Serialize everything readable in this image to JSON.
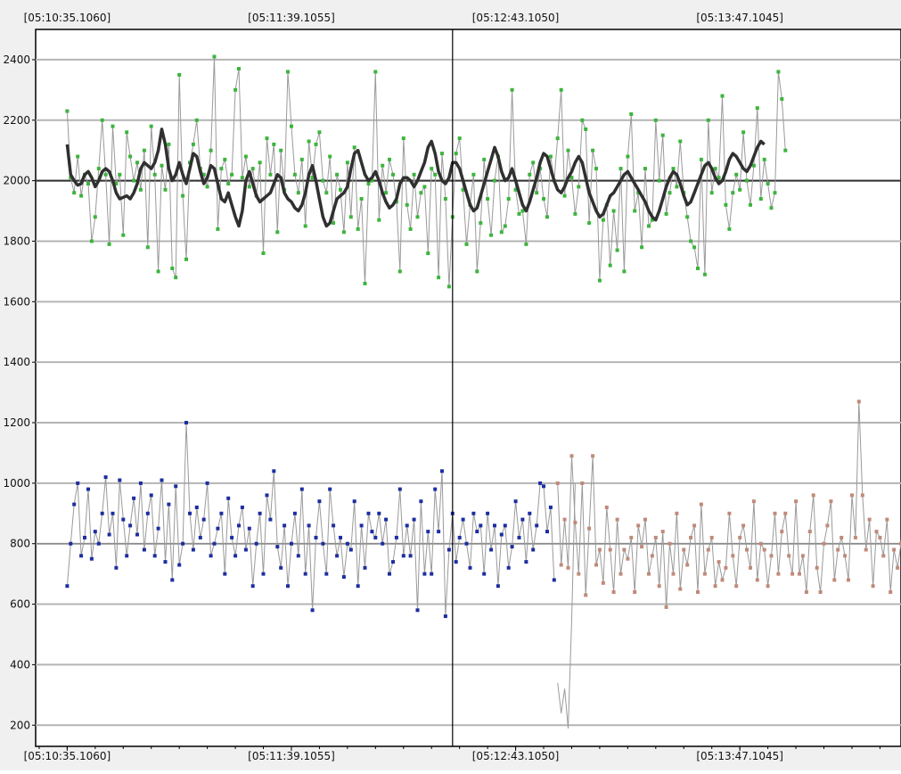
{
  "chart_data": {
    "type": "line",
    "title": "",
    "xlabel": "",
    "ylabel": "",
    "x_tick_labels": [
      "[05:10:35.1060]",
      "[05:11:39.1055]",
      "[05:12:43.1050]",
      "[05:13:47.1045]"
    ],
    "x_tick_seconds": [
      0,
      64,
      128,
      192
    ],
    "xlim_seconds": [
      -9,
      238
    ],
    "ylim": [
      130,
      2500
    ],
    "y_ticks": [
      200,
      400,
      600,
      800,
      1000,
      1200,
      1400,
      1600,
      1800,
      2000,
      2200,
      2400
    ],
    "reference_lines": [
      2000,
      800
    ],
    "cursor_seconds": 110,
    "grid": true,
    "legend": "none",
    "colors": {
      "upper_points": "#3cb43c",
      "upper_average": "#303030",
      "lower_points_before": "#1c2ea0",
      "lower_points_after": "#c08a78",
      "connector": "#9a9a9a"
    },
    "series": [
      {
        "name": "",
        "kind": "scatter-line",
        "x_start_seconds": 0,
        "x_step_seconds": 1,
        "values": [
          2230,
          2010,
          1960,
          2080,
          1950,
          2020,
          1990,
          1800,
          1880,
          2040,
          2200,
          2020,
          1790,
          2180,
          1990,
          2020,
          1820,
          2160,
          2080,
          2000,
          2060,
          1970,
          2100,
          1780,
          2180,
          2020,
          1700,
          2050,
          1970,
          2120,
          1710,
          1680,
          2350,
          1950,
          1740,
          2060,
          2120,
          2200,
          2040,
          2020,
          1980,
          2100,
          2410,
          1840,
          2040,
          2070,
          1990,
          2020,
          2300,
          2370,
          2010,
          2080,
          1980,
          2040,
          1950,
          2060,
          1760,
          2140,
          2020,
          2120,
          1830,
          2100,
          1970,
          2360,
          2180,
          2020,
          1960,
          2070,
          1850,
          2130,
          2010,
          2120,
          2160,
          2000,
          1960,
          2080,
          1860,
          2020,
          1970,
          1830,
          2060,
          1880,
          2110,
          1840,
          1940,
          1660,
          1990,
          2000,
          2360,
          1870,
          2050,
          1960,
          2070,
          2020,
          1930,
          1700,
          2140,
          1920,
          1840,
          2020,
          1880,
          1960,
          1980,
          1760,
          2040,
          2020,
          1680,
          2090,
          1940,
          1650,
          1880,
          2090,
          2140,
          1970,
          1790,
          1920,
          2020,
          1700,
          1860,
          2070,
          1940,
          1820,
          2000,
          2080,
          1830,
          1850,
          1940,
          2300,
          1970,
          1890,
          1900,
          1790,
          2020,
          2060,
          1960,
          2040,
          1940,
          1880,
          2080,
          2000,
          2140,
          2300,
          1950,
          2100,
          2010,
          1890,
          1980,
          2200,
          2170,
          1860,
          2100,
          2040,
          1670,
          1870,
          1920,
          1720,
          1900,
          1770,
          2040,
          1700,
          2080,
          2220,
          1900,
          1960,
          1780,
          2040,
          1850,
          1870,
          2200,
          2000,
          2150,
          1890,
          1960,
          2040,
          1980,
          2130,
          1960,
          1880,
          1800,
          1780,
          1710,
          2070,
          1690,
          2200,
          1960,
          2040,
          2010,
          2280,
          1920,
          1840,
          1960,
          2020,
          1970,
          2160,
          2000,
          1920,
          2050,
          2240,
          1940,
          2070,
          1990,
          1910,
          1960,
          2360,
          2270,
          2100
        ]
      },
      {
        "name": "",
        "kind": "line",
        "x_start_seconds": 0,
        "x_step_seconds": 1,
        "values": [
          2120,
          2020,
          2000,
          1985,
          1990,
          2020,
          2030,
          2010,
          1980,
          2000,
          2030,
          2040,
          2030,
          2000,
          1960,
          1940,
          1945,
          1950,
          1940,
          1960,
          1990,
          2040,
          2060,
          2050,
          2040,
          2060,
          2100,
          2170,
          2120,
          2040,
          2000,
          2020,
          2060,
          2020,
          1990,
          2040,
          2090,
          2080,
          2030,
          1990,
          2010,
          2050,
          2040,
          1990,
          1940,
          1930,
          1960,
          1920,
          1880,
          1850,
          1900,
          2000,
          2030,
          1990,
          1950,
          1930,
          1940,
          1950,
          1960,
          1990,
          2020,
          2010,
          1960,
          1940,
          1930,
          1910,
          1900,
          1920,
          1960,
          2020,
          2050,
          2000,
          1940,
          1880,
          1850,
          1860,
          1900,
          1940,
          1950,
          1960,
          1980,
          2040,
          2090,
          2100,
          2060,
          2020,
          2000,
          2010,
          2030,
          2000,
          1960,
          1930,
          1910,
          1920,
          1940,
          1990,
          2010,
          2010,
          2000,
          1980,
          2000,
          2030,
          2060,
          2110,
          2130,
          2090,
          2030,
          2000,
          1990,
          2010,
          2060,
          2060,
          2040,
          2000,
          1960,
          1920,
          1900,
          1910,
          1950,
          1990,
          2030,
          2070,
          2110,
          2080,
          2030,
          2000,
          2010,
          2040,
          2000,
          1960,
          1920,
          1900,
          1930,
          1970,
          2010,
          2060,
          2090,
          2080,
          2040,
          2000,
          1970,
          1960,
          1980,
          2010,
          2030,
          2060,
          2080,
          2060,
          2010,
          1960,
          1930,
          1900,
          1880,
          1890,
          1920,
          1950,
          1960,
          1980,
          2000,
          2020,
          2030,
          2010,
          1990,
          1970,
          1950,
          1930,
          1900,
          1880,
          1870,
          1900,
          1940,
          1980,
          2010,
          2030,
          2020,
          1990,
          1950,
          1920,
          1930,
          1960,
          1990,
          2020,
          2050,
          2060,
          2040,
          2010,
          1990,
          2000,
          2030,
          2070,
          2090,
          2080,
          2060,
          2040,
          2030,
          2050,
          2080,
          2110,
          2130,
          2120
        ]
      },
      {
        "name": "",
        "kind": "scatter-line",
        "x_start_seconds": 0,
        "x_step_seconds": 1,
        "values": [
          660,
          800,
          930,
          1000,
          760,
          820,
          980,
          750,
          840,
          800,
          900,
          1020,
          830,
          900,
          720,
          1010,
          880,
          760,
          860,
          950,
          830,
          1000,
          780,
          900,
          960,
          760,
          850,
          1010,
          740,
          930,
          680,
          990,
          730,
          800,
          1200,
          900,
          780,
          920,
          820,
          880,
          1000,
          760,
          800,
          850,
          900,
          700,
          950,
          820,
          760,
          860,
          920,
          780,
          850,
          660,
          800,
          900,
          700,
          960,
          880,
          1040,
          790,
          720,
          860,
          660,
          800,
          900,
          760,
          980,
          700,
          860,
          580,
          820,
          940,
          800,
          700,
          980,
          860,
          760,
          820,
          690,
          800,
          780,
          940,
          660,
          860,
          720,
          900,
          840,
          820,
          900,
          800,
          880,
          700,
          740,
          820,
          980,
          760,
          860,
          760,
          880,
          580,
          940,
          700,
          840,
          700,
          980,
          840,
          1040,
          560,
          780,
          900,
          740,
          820,
          880,
          800,
          720,
          900,
          840,
          860,
          700,
          900,
          780,
          860,
          660,
          830,
          860,
          720,
          790,
          940,
          820,
          880,
          740,
          900,
          780,
          860,
          1000,
          990,
          840,
          920,
          680
        ],
        "color_key": "lower_points_before"
      },
      {
        "name": "",
        "kind": "line",
        "x_start_seconds": 140,
        "x_step_seconds": 1,
        "values": [
          340,
          240,
          320,
          190,
          550,
          1000
        ],
        "color_key": "connector"
      },
      {
        "name": "",
        "kind": "scatter-line",
        "x_start_seconds": 140,
        "x_step_seconds": 1,
        "values": [
          1000,
          730,
          880,
          720,
          1090,
          870,
          700,
          1000,
          630,
          850,
          1090,
          730,
          780,
          670,
          920,
          780,
          640,
          880,
          700,
          780,
          750,
          820,
          640,
          860,
          790,
          880,
          700,
          760,
          820,
          660,
          840,
          590,
          800,
          700,
          900,
          650,
          780,
          730,
          820,
          860,
          640,
          930,
          700,
          780,
          820,
          660,
          740,
          680,
          720,
          900,
          760,
          660,
          820,
          860,
          780,
          720,
          940,
          680,
          800,
          780,
          660,
          760,
          900,
          700,
          840,
          900,
          760,
          700,
          940,
          700,
          760,
          640,
          840,
          960,
          720,
          640,
          800,
          860,
          940,
          680,
          780,
          820,
          760,
          680,
          960,
          820,
          1270,
          960,
          780,
          880,
          660,
          840,
          820,
          760,
          880,
          640,
          780,
          720,
          800,
          960,
          600,
          920,
          640,
          740,
          900,
          780,
          560,
          820,
          900,
          680,
          740,
          840,
          680,
          780,
          840,
          660,
          920,
          600,
          880,
          700,
          780,
          840,
          1030,
          700,
          600,
          860,
          780,
          680,
          760,
          830,
          720,
          880,
          600,
          760,
          840,
          680,
          720,
          960,
          620,
          740,
          880,
          600,
          940,
          800,
          660,
          860,
          720,
          760,
          680,
          900
        ],
        "color_key": "lower_points_after"
      }
    ]
  }
}
